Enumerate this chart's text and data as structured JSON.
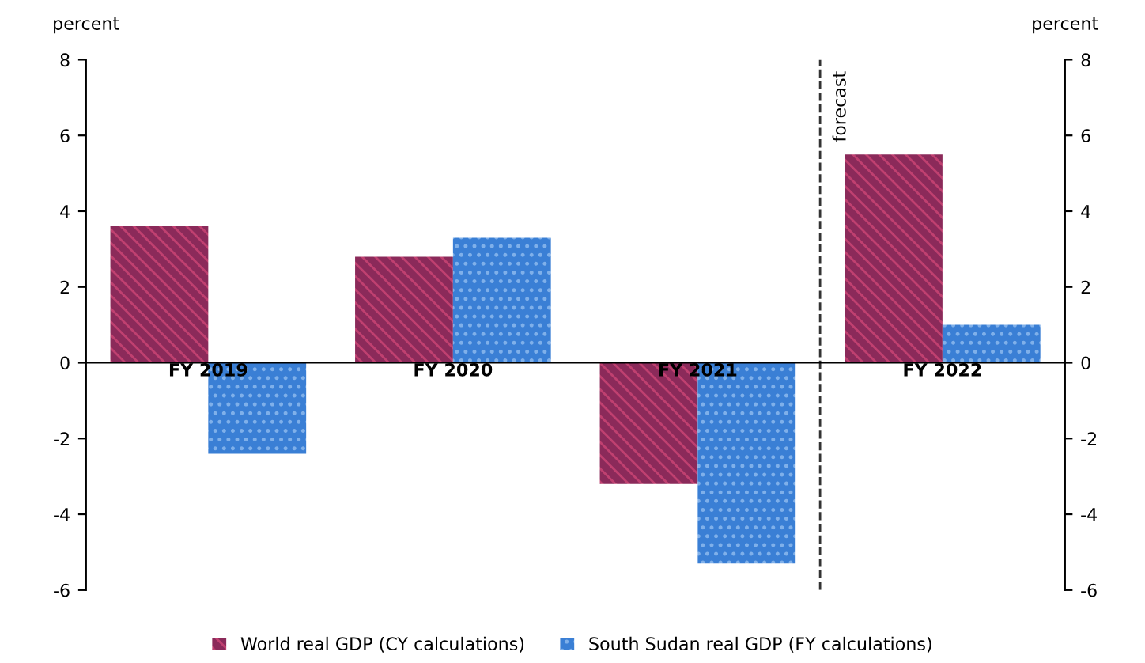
{
  "chart_data": {
    "type": "bar",
    "categories": [
      "FY 2019",
      "FY 2020",
      "FY 2021",
      "FY 2022"
    ],
    "series": [
      {
        "name": "World real GDP (CY calculations)",
        "color": "#8b2a5a",
        "values": [
          3.6,
          2.8,
          -3.2,
          5.5
        ]
      },
      {
        "name": "South Sudan real GDP (FY calculations)",
        "color": "#3a7fd5",
        "values": [
          -2.4,
          3.3,
          -5.3,
          1.0
        ]
      }
    ],
    "ylabel": "percent",
    "y2label": "percent",
    "ylim": [
      -6,
      8
    ],
    "yticks": [
      -6,
      -4,
      -2,
      0,
      2,
      4,
      6,
      8
    ],
    "y2lim": [
      -6,
      8
    ],
    "y2ticks": [
      -6,
      -4,
      -2,
      0,
      2,
      4,
      6,
      8
    ],
    "annotations": [
      "forecast"
    ],
    "grid": false,
    "legend": "bottom"
  }
}
